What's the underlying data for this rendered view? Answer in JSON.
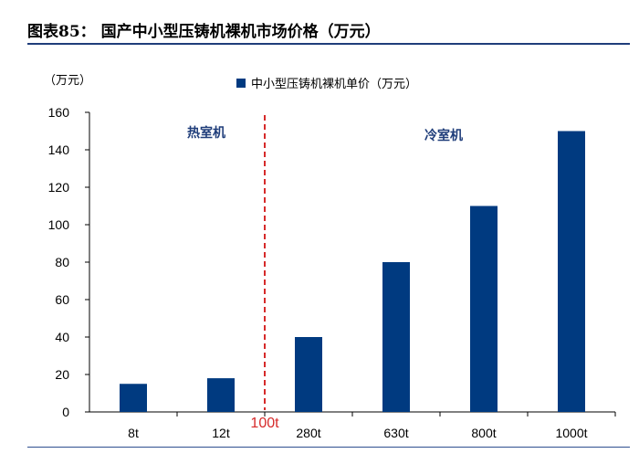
{
  "header": {
    "title": "图表85： 国产中小型压铸机裸机市场价格（万元）"
  },
  "chart_data": {
    "type": "bar",
    "unit_label": "（万元）",
    "categories": [
      "8t",
      "12t",
      "280t",
      "630t",
      "800t",
      "1000t"
    ],
    "series": [
      {
        "name": "中小型压铸机裸机单价（万元）",
        "values": [
          15,
          18,
          40,
          80,
          110,
          150
        ]
      }
    ],
    "ylim": [
      0,
      160
    ],
    "yticks": [
      0,
      20,
      40,
      60,
      80,
      100,
      120,
      140,
      160
    ],
    "legend_position": "top-center",
    "grid": false,
    "divider": {
      "label": "100t",
      "between": [
        "12t",
        "280t"
      ]
    },
    "region_labels": {
      "left": "热室机",
      "right": "冷室机"
    },
    "colors": {
      "bar": "#003A80",
      "divider": "#D62A2A",
      "region_text": "#1F3D7A"
    }
  }
}
